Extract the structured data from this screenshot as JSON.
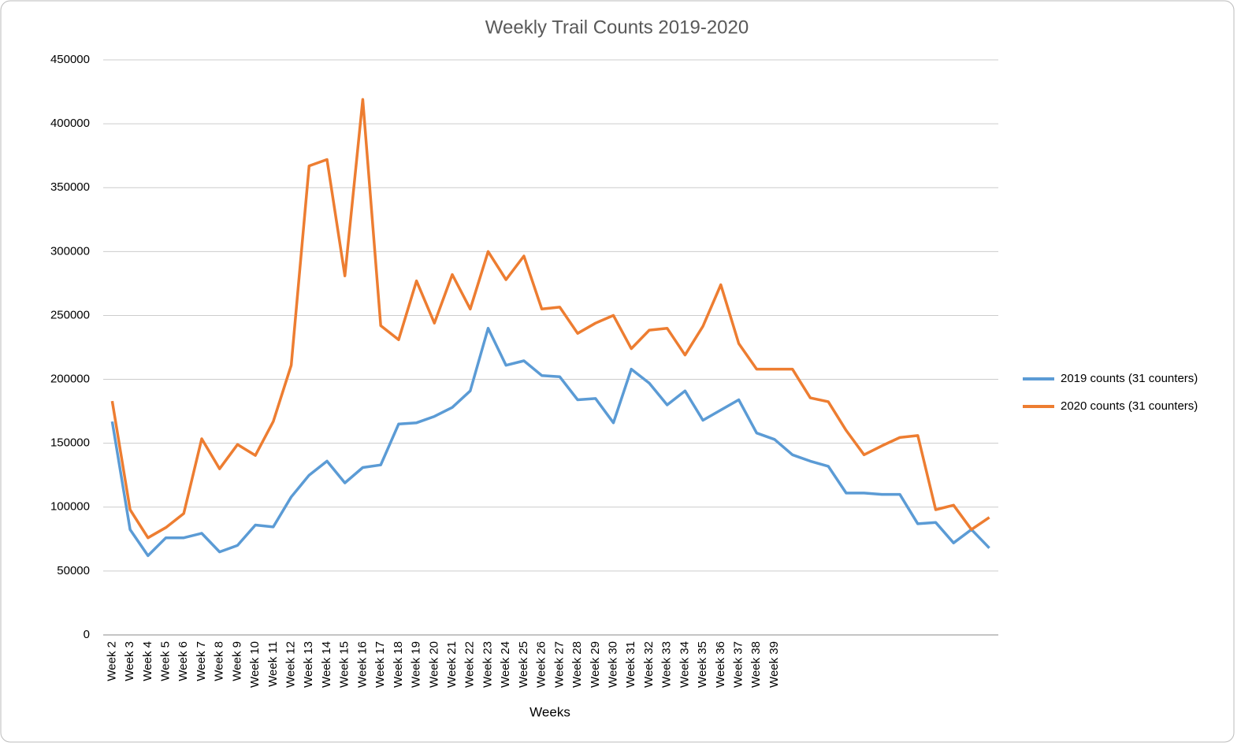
{
  "chart_data": {
    "type": "line",
    "title": "Weekly Trail Counts 2019-2020",
    "x_label": "Weeks",
    "categories": [
      "Week 2",
      "Week 3",
      "Week 4",
      "Week 5",
      "Week 6",
      "Week 7",
      "Week 8",
      "Week 9",
      "Week 10",
      "Week 11",
      "Week 12",
      "Week 13",
      "Week 14",
      "Week 15",
      "Week 16",
      "Week 17",
      "Week 18",
      "Week 19",
      "Week 20",
      "Week 21",
      "Week 22",
      "Week 23",
      "Week 24",
      "Week 25",
      "Week 26",
      "Week 27",
      "Week 28",
      "Week 29",
      "Week 30",
      "Week 31",
      "Week 32",
      "Week 33",
      "Week 34",
      "Week 35",
      "Week 36",
      "Week 37",
      "Week 38",
      "Week 39",
      null,
      null,
      null,
      null,
      null,
      null,
      null,
      null,
      null,
      null,
      null,
      null
    ],
    "series": [
      {
        "name": "2019 counts (31 counters)",
        "color": "#5b9bd5",
        "values": [
          167000,
          82500,
          62000,
          76000,
          76000,
          79500,
          65000,
          70000,
          86000,
          84500,
          108000,
          125000,
          136000,
          119000,
          131000,
          133000,
          165000,
          166000,
          171000,
          178000,
          191000,
          240000,
          211000,
          214500,
          203000,
          202000,
          184000,
          185000,
          166000,
          208000,
          197000,
          180000,
          191000,
          168000,
          176000,
          184000,
          158000,
          153000,
          141000,
          136000,
          132000,
          111000,
          111000,
          110000,
          110000,
          87000,
          88000,
          72000,
          82500,
          68000
        ]
      },
      {
        "name": "2020 counts (31 counters)",
        "color": "#ed7d31",
        "values": [
          183000,
          98000,
          76000,
          84000,
          95000,
          153500,
          130000,
          149000,
          140500,
          167000,
          211000,
          367000,
          372000,
          281000,
          419000,
          242000,
          231000,
          277000,
          244000,
          282000,
          255000,
          300000,
          278000,
          296500,
          255000,
          256500,
          236000,
          244000,
          250000,
          224000,
          238500,
          240000,
          219000,
          241500,
          274000,
          228000,
          208000,
          208000,
          208000,
          185500,
          182500,
          160000,
          141000,
          148000,
          154500,
          156000,
          98000,
          101500,
          82500,
          92000
        ]
      }
    ],
    "ylim": [
      0,
      450000
    ],
    "yticks": [
      0,
      50000,
      100000,
      150000,
      200000,
      250000,
      300000,
      350000,
      400000,
      450000
    ],
    "grid": true,
    "legend": "right"
  }
}
